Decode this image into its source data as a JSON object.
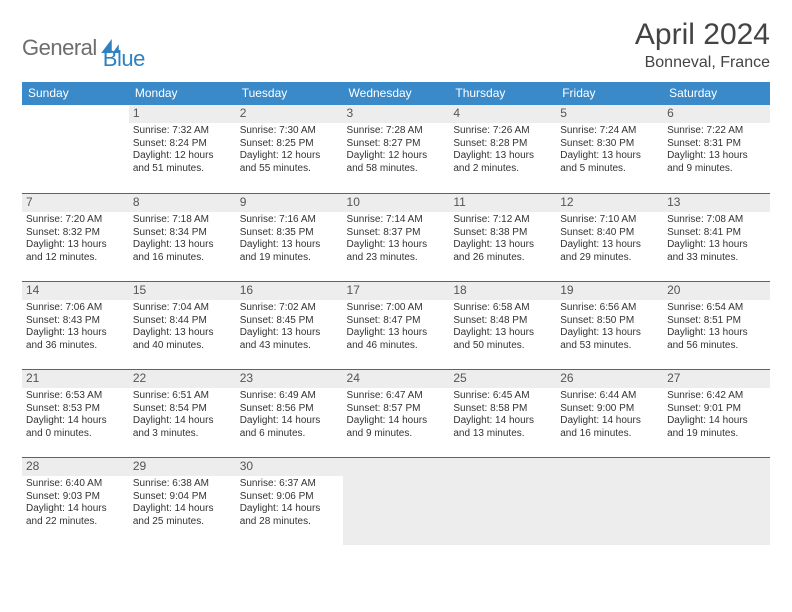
{
  "brand": {
    "part1": "General",
    "part2": "Blue"
  },
  "title": "April 2024",
  "location": "Bonneval, France",
  "colors": {
    "header_bg": "#3a89c9",
    "header_text": "#ffffff",
    "row_border": "#2d6fa6",
    "daynum_bg": "#ededed",
    "logo_gray": "#6d6d6d",
    "logo_blue": "#2f81c0"
  },
  "weekdays": [
    "Sunday",
    "Monday",
    "Tuesday",
    "Wednesday",
    "Thursday",
    "Friday",
    "Saturday"
  ],
  "weeks": [
    [
      null,
      {
        "n": "1",
        "sr": "Sunrise: 7:32 AM",
        "ss": "Sunset: 8:24 PM",
        "d1": "Daylight: 12 hours",
        "d2": "and 51 minutes."
      },
      {
        "n": "2",
        "sr": "Sunrise: 7:30 AM",
        "ss": "Sunset: 8:25 PM",
        "d1": "Daylight: 12 hours",
        "d2": "and 55 minutes."
      },
      {
        "n": "3",
        "sr": "Sunrise: 7:28 AM",
        "ss": "Sunset: 8:27 PM",
        "d1": "Daylight: 12 hours",
        "d2": "and 58 minutes."
      },
      {
        "n": "4",
        "sr": "Sunrise: 7:26 AM",
        "ss": "Sunset: 8:28 PM",
        "d1": "Daylight: 13 hours",
        "d2": "and 2 minutes."
      },
      {
        "n": "5",
        "sr": "Sunrise: 7:24 AM",
        "ss": "Sunset: 8:30 PM",
        "d1": "Daylight: 13 hours",
        "d2": "and 5 minutes."
      },
      {
        "n": "6",
        "sr": "Sunrise: 7:22 AM",
        "ss": "Sunset: 8:31 PM",
        "d1": "Daylight: 13 hours",
        "d2": "and 9 minutes."
      }
    ],
    [
      {
        "n": "7",
        "sr": "Sunrise: 7:20 AM",
        "ss": "Sunset: 8:32 PM",
        "d1": "Daylight: 13 hours",
        "d2": "and 12 minutes."
      },
      {
        "n": "8",
        "sr": "Sunrise: 7:18 AM",
        "ss": "Sunset: 8:34 PM",
        "d1": "Daylight: 13 hours",
        "d2": "and 16 minutes."
      },
      {
        "n": "9",
        "sr": "Sunrise: 7:16 AM",
        "ss": "Sunset: 8:35 PM",
        "d1": "Daylight: 13 hours",
        "d2": "and 19 minutes."
      },
      {
        "n": "10",
        "sr": "Sunrise: 7:14 AM",
        "ss": "Sunset: 8:37 PM",
        "d1": "Daylight: 13 hours",
        "d2": "and 23 minutes."
      },
      {
        "n": "11",
        "sr": "Sunrise: 7:12 AM",
        "ss": "Sunset: 8:38 PM",
        "d1": "Daylight: 13 hours",
        "d2": "and 26 minutes."
      },
      {
        "n": "12",
        "sr": "Sunrise: 7:10 AM",
        "ss": "Sunset: 8:40 PM",
        "d1": "Daylight: 13 hours",
        "d2": "and 29 minutes."
      },
      {
        "n": "13",
        "sr": "Sunrise: 7:08 AM",
        "ss": "Sunset: 8:41 PM",
        "d1": "Daylight: 13 hours",
        "d2": "and 33 minutes."
      }
    ],
    [
      {
        "n": "14",
        "sr": "Sunrise: 7:06 AM",
        "ss": "Sunset: 8:43 PM",
        "d1": "Daylight: 13 hours",
        "d2": "and 36 minutes."
      },
      {
        "n": "15",
        "sr": "Sunrise: 7:04 AM",
        "ss": "Sunset: 8:44 PM",
        "d1": "Daylight: 13 hours",
        "d2": "and 40 minutes."
      },
      {
        "n": "16",
        "sr": "Sunrise: 7:02 AM",
        "ss": "Sunset: 8:45 PM",
        "d1": "Daylight: 13 hours",
        "d2": "and 43 minutes."
      },
      {
        "n": "17",
        "sr": "Sunrise: 7:00 AM",
        "ss": "Sunset: 8:47 PM",
        "d1": "Daylight: 13 hours",
        "d2": "and 46 minutes."
      },
      {
        "n": "18",
        "sr": "Sunrise: 6:58 AM",
        "ss": "Sunset: 8:48 PM",
        "d1": "Daylight: 13 hours",
        "d2": "and 50 minutes."
      },
      {
        "n": "19",
        "sr": "Sunrise: 6:56 AM",
        "ss": "Sunset: 8:50 PM",
        "d1": "Daylight: 13 hours",
        "d2": "and 53 minutes."
      },
      {
        "n": "20",
        "sr": "Sunrise: 6:54 AM",
        "ss": "Sunset: 8:51 PM",
        "d1": "Daylight: 13 hours",
        "d2": "and 56 minutes."
      }
    ],
    [
      {
        "n": "21",
        "sr": "Sunrise: 6:53 AM",
        "ss": "Sunset: 8:53 PM",
        "d1": "Daylight: 14 hours",
        "d2": "and 0 minutes."
      },
      {
        "n": "22",
        "sr": "Sunrise: 6:51 AM",
        "ss": "Sunset: 8:54 PM",
        "d1": "Daylight: 14 hours",
        "d2": "and 3 minutes."
      },
      {
        "n": "23",
        "sr": "Sunrise: 6:49 AM",
        "ss": "Sunset: 8:56 PM",
        "d1": "Daylight: 14 hours",
        "d2": "and 6 minutes."
      },
      {
        "n": "24",
        "sr": "Sunrise: 6:47 AM",
        "ss": "Sunset: 8:57 PM",
        "d1": "Daylight: 14 hours",
        "d2": "and 9 minutes."
      },
      {
        "n": "25",
        "sr": "Sunrise: 6:45 AM",
        "ss": "Sunset: 8:58 PM",
        "d1": "Daylight: 14 hours",
        "d2": "and 13 minutes."
      },
      {
        "n": "26",
        "sr": "Sunrise: 6:44 AM",
        "ss": "Sunset: 9:00 PM",
        "d1": "Daylight: 14 hours",
        "d2": "and 16 minutes."
      },
      {
        "n": "27",
        "sr": "Sunrise: 6:42 AM",
        "ss": "Sunset: 9:01 PM",
        "d1": "Daylight: 14 hours",
        "d2": "and 19 minutes."
      }
    ],
    [
      {
        "n": "28",
        "sr": "Sunrise: 6:40 AM",
        "ss": "Sunset: 9:03 PM",
        "d1": "Daylight: 14 hours",
        "d2": "and 22 minutes."
      },
      {
        "n": "29",
        "sr": "Sunrise: 6:38 AM",
        "ss": "Sunset: 9:04 PM",
        "d1": "Daylight: 14 hours",
        "d2": "and 25 minutes."
      },
      {
        "n": "30",
        "sr": "Sunrise: 6:37 AM",
        "ss": "Sunset: 9:06 PM",
        "d1": "Daylight: 14 hours",
        "d2": "and 28 minutes."
      },
      {
        "trail": true
      },
      {
        "trail": true
      },
      {
        "trail": true
      },
      {
        "trail": true
      }
    ]
  ]
}
